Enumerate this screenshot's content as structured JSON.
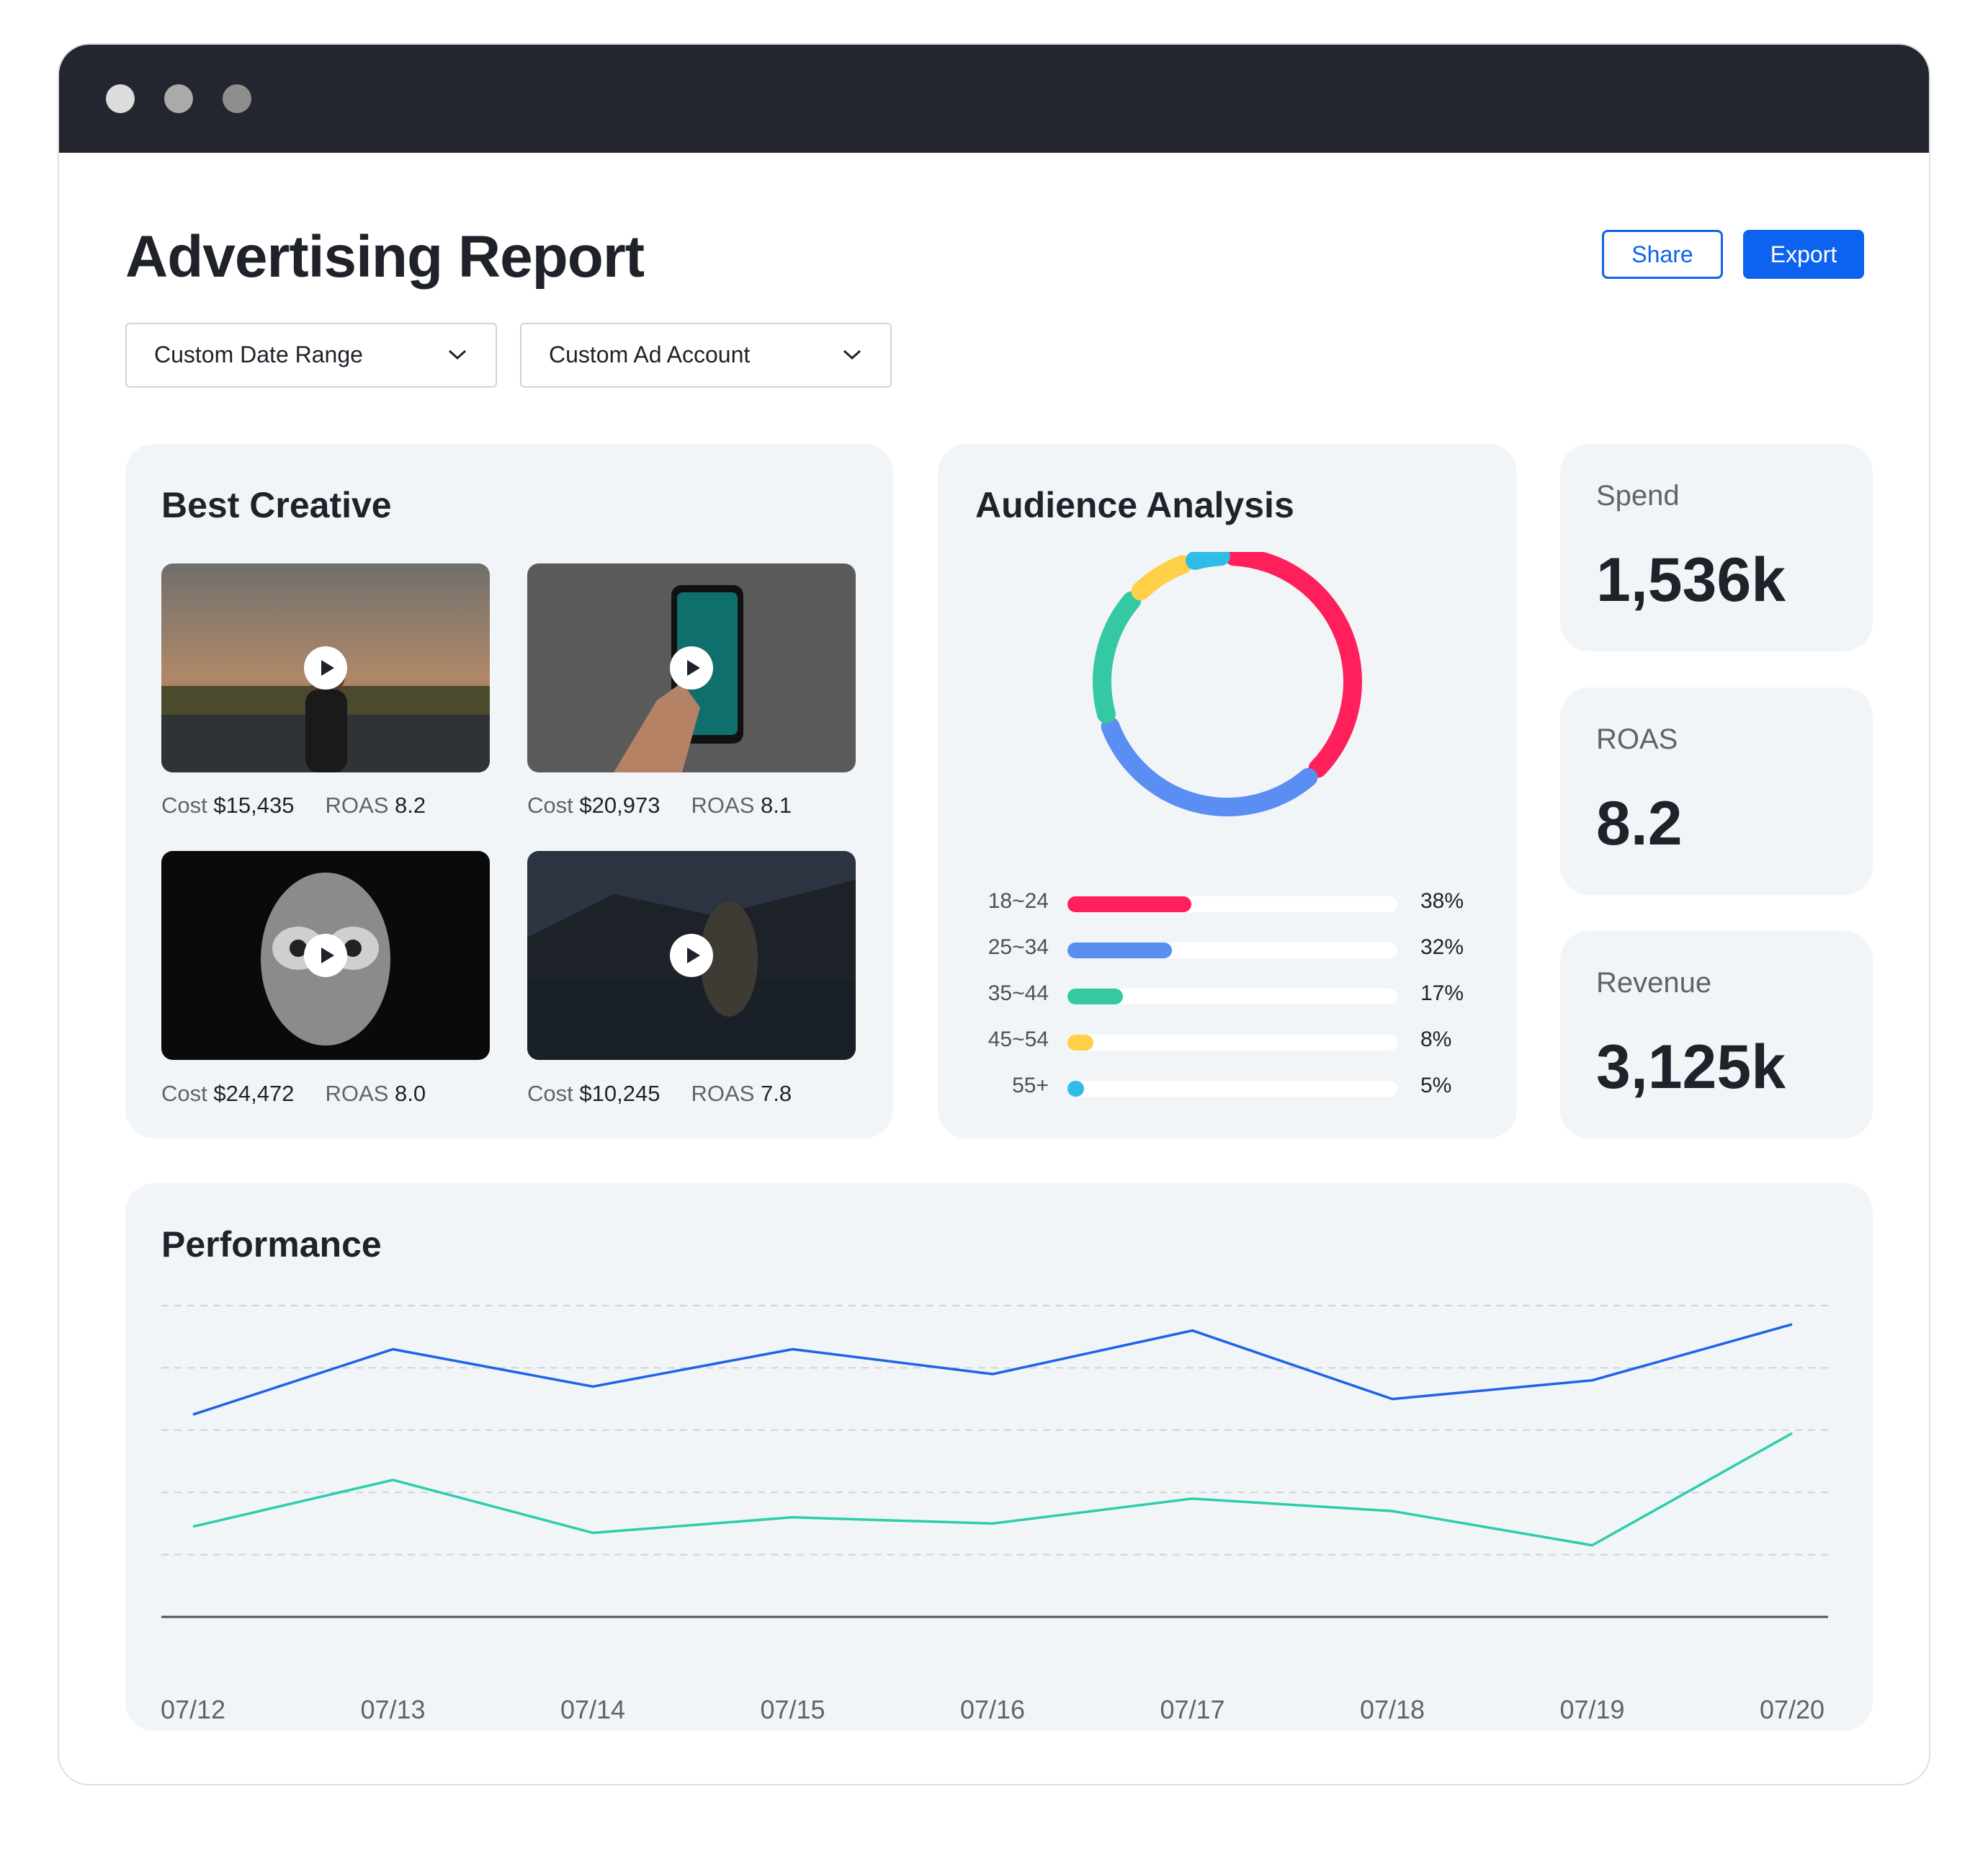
{
  "title": "Advertising Report",
  "actions": {
    "share": "Share",
    "export": "Export"
  },
  "filters": {
    "date_range": "Custom Date Range",
    "ad_account": "Custom Ad Account"
  },
  "best_creative": {
    "title": "Best Creative",
    "cost_label": "Cost",
    "roas_label": "ROAS",
    "items": [
      {
        "cost": "$15,435",
        "roas": "8.2"
      },
      {
        "cost": "$20,973",
        "roas": "8.1"
      },
      {
        "cost": "$24,472",
        "roas": "8.0"
      },
      {
        "cost": "$10,245",
        "roas": "7.8"
      }
    ]
  },
  "audience": {
    "title": "Audience Analysis",
    "groups": [
      {
        "label": "18~24",
        "pct": "38%",
        "value": 38,
        "color": "#ff1f5a"
      },
      {
        "label": "25~34",
        "pct": "32%",
        "value": 32,
        "color": "#5b8ef2"
      },
      {
        "label": "35~44",
        "pct": "17%",
        "value": 17,
        "color": "#35c9a3"
      },
      {
        "label": "45~54",
        "pct": "8%",
        "value": 8,
        "color": "#ffcf47"
      },
      {
        "label": "55+",
        "pct": "5%",
        "value": 5,
        "color": "#2ebde6"
      }
    ]
  },
  "kpis": [
    {
      "label": "Spend",
      "value": "1,536k"
    },
    {
      "label": "ROAS",
      "value": "8.2"
    },
    {
      "label": "Revenue",
      "value": "3,125k"
    }
  ],
  "performance": {
    "title": "Performance",
    "chart_data": {
      "type": "line",
      "x": [
        "07/12",
        "07/13",
        "07/14",
        "07/15",
        "07/16",
        "07/17",
        "07/18",
        "07/19",
        "07/20"
      ],
      "ylim": [
        0,
        100
      ],
      "grid": true,
      "series": [
        {
          "color": "#1e63e9",
          "values": [
            65,
            86,
            74,
            86,
            78,
            92,
            70,
            76,
            94
          ]
        },
        {
          "color": "#2ccdad",
          "values": [
            29,
            44,
            27,
            32,
            30,
            38,
            34,
            23,
            59
          ]
        }
      ]
    }
  }
}
